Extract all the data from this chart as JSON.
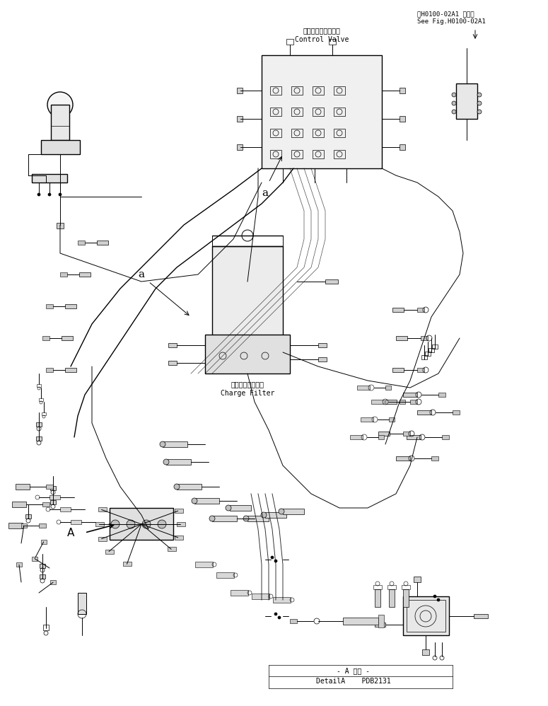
{
  "bg_color": "#ffffff",
  "line_color": "#000000",
  "title_top_right": "第H0100-02A1 図参照\nSee Fig.H0100-02A1",
  "label_control_valve_jp": "コントロールバルブ",
  "label_control_valve_en": "Control Valve",
  "label_charge_filter_jp": "チャージフィルタ",
  "label_charge_filter_en": "Charge Filter",
  "label_a1": "a",
  "label_a2": "a",
  "label_A": "A",
  "label_detail": "A 詳細",
  "label_detailA": "DetailA",
  "label_pdb": "PDB2131",
  "font_size_labels": 7,
  "font_size_title": 7,
  "font_size_big": 10
}
